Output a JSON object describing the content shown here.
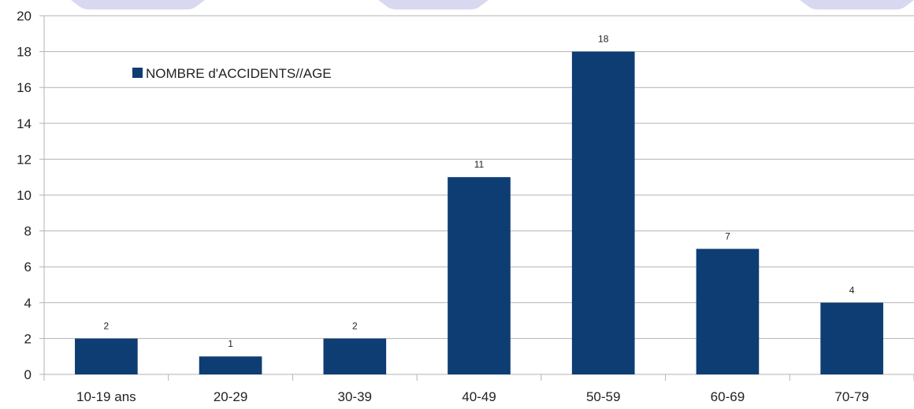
{
  "chart_data": {
    "type": "bar",
    "categories": [
      "10-19 ans",
      "20-29",
      "30-39",
      "40-49",
      "50-59",
      "60-69",
      "70-79"
    ],
    "series": [
      {
        "name": "NOMBRE d'ACCIDENTS//AGE",
        "values": [
          2,
          1,
          2,
          11,
          18,
          7,
          4
        ]
      }
    ],
    "ylim": [
      0,
      20
    ],
    "yticks": [
      "0",
      "2",
      "4",
      "6",
      "8",
      "10",
      "12",
      "14",
      "16",
      "18",
      "20"
    ],
    "grid": true,
    "legend": "top-left",
    "data_labels": true,
    "bar_color": "#0d3d73",
    "grid_color": "#b3b3b3",
    "decoration_color": "#d8d8f0"
  }
}
